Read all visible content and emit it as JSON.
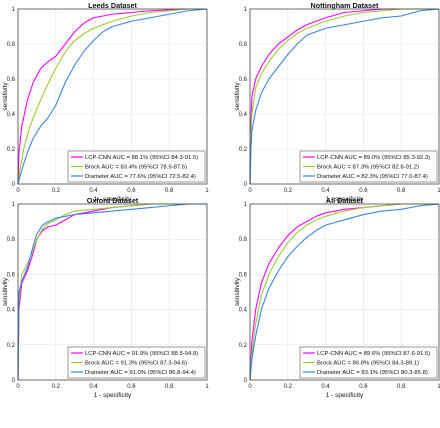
{
  "colors": {
    "lcp_cnn": "#ff00ff",
    "brock": "#9acd32",
    "diameter": "#3a86e0",
    "axes": "#333333",
    "grid": "#e4e4e4"
  },
  "chart_data": [
    {
      "type": "line",
      "title": "Leeds Dataset",
      "xlabel": "1 - specificity",
      "ylabel": "sensitivity",
      "xlim": [
        0,
        1
      ],
      "ylim": [
        0,
        1
      ],
      "xticks": [
        "0",
        "0.2",
        "0.4",
        "0.6",
        "0.8",
        "1"
      ],
      "yticks": [
        "0",
        "0.2",
        "0.4",
        "0.6",
        "0.8",
        "1"
      ],
      "grid": true,
      "legend_position": "bottom-right",
      "series": [
        {
          "name": "LCP-CNN AUC = 88.1% (95%CI 84.3-91.5)",
          "color_key": "lcp_cnn",
          "x": [
            0,
            0.005,
            0.02,
            0.05,
            0.08,
            0.12,
            0.16,
            0.2,
            0.25,
            0.3,
            0.35,
            0.4,
            0.5,
            0.6,
            0.7,
            0.8,
            0.9,
            1.0
          ],
          "y": [
            0,
            0.18,
            0.33,
            0.48,
            0.58,
            0.66,
            0.7,
            0.73,
            0.8,
            0.87,
            0.92,
            0.95,
            0.97,
            0.98,
            0.99,
            0.995,
            1.0,
            1.0
          ]
        },
        {
          "name": "Brock AUC = 83.4% (95%CI 78.9-87.5)",
          "color_key": "brock",
          "x": [
            0,
            0.01,
            0.03,
            0.06,
            0.1,
            0.14,
            0.18,
            0.22,
            0.26,
            0.3,
            0.35,
            0.4,
            0.5,
            0.6,
            0.7,
            0.8,
            0.9,
            1.0
          ],
          "y": [
            0,
            0.08,
            0.2,
            0.32,
            0.43,
            0.53,
            0.62,
            0.7,
            0.77,
            0.82,
            0.86,
            0.89,
            0.93,
            0.96,
            0.98,
            0.99,
            1.0,
            1.0
          ]
        },
        {
          "name": "Diameter AUC = 77.6% (95%CI 72.5-82.4)",
          "color_key": "diameter",
          "x": [
            0,
            0.02,
            0.05,
            0.08,
            0.12,
            0.16,
            0.2,
            0.25,
            0.3,
            0.35,
            0.4,
            0.45,
            0.5,
            0.6,
            0.7,
            0.8,
            0.9,
            1.0
          ],
          "y": [
            0,
            0.08,
            0.18,
            0.26,
            0.33,
            0.38,
            0.45,
            0.58,
            0.68,
            0.76,
            0.82,
            0.87,
            0.9,
            0.93,
            0.95,
            0.97,
            0.99,
            1.0
          ]
        }
      ]
    },
    {
      "type": "line",
      "title": "Nottingham Dataset",
      "xlabel": "1 - specificity",
      "ylabel": "sensitivity",
      "xlim": [
        0,
        1
      ],
      "ylim": [
        0,
        1
      ],
      "xticks": [
        "0",
        "0.2",
        "0.4",
        "0.6",
        "0.8",
        "1"
      ],
      "yticks": [
        "0",
        "0.2",
        "0.4",
        "0.6",
        "0.8",
        "1"
      ],
      "grid": true,
      "legend_position": "bottom-right",
      "series": [
        {
          "name": "LCP-CNN AUC = 89.0% (95%CI 85.3-92.3)",
          "color_key": "lcp_cnn",
          "x": [
            0,
            0.005,
            0.01,
            0.03,
            0.06,
            0.1,
            0.15,
            0.2,
            0.25,
            0.3,
            0.4,
            0.5,
            0.6,
            0.7,
            0.8,
            0.9,
            1.0
          ],
          "y": [
            0,
            0.35,
            0.5,
            0.6,
            0.67,
            0.74,
            0.8,
            0.84,
            0.88,
            0.91,
            0.95,
            0.98,
            0.99,
            1.0,
            1.0,
            1.0,
            1.0
          ]
        },
        {
          "name": "Brock AUC = 87.3% (95%CI 82.8-91.2)",
          "color_key": "brock",
          "x": [
            0,
            0.005,
            0.01,
            0.03,
            0.06,
            0.1,
            0.15,
            0.2,
            0.25,
            0.3,
            0.4,
            0.5,
            0.6,
            0.7,
            0.8,
            0.9,
            1.0
          ],
          "y": [
            0,
            0.25,
            0.4,
            0.55,
            0.63,
            0.7,
            0.77,
            0.82,
            0.86,
            0.89,
            0.93,
            0.96,
            0.98,
            0.99,
            1.0,
            1.0,
            1.0
          ]
        },
        {
          "name": "Diameter AUC = 82.3% (95%CI 77.0-87.4)",
          "color_key": "diameter",
          "x": [
            0,
            0.005,
            0.01,
            0.03,
            0.06,
            0.1,
            0.15,
            0.2,
            0.25,
            0.3,
            0.4,
            0.5,
            0.6,
            0.7,
            0.8,
            0.9,
            1.0
          ],
          "y": [
            0,
            0.2,
            0.3,
            0.42,
            0.52,
            0.6,
            0.67,
            0.74,
            0.8,
            0.85,
            0.89,
            0.91,
            0.93,
            0.95,
            0.96,
            0.99,
            1.0
          ]
        }
      ]
    },
    {
      "type": "line",
      "title": "Oxford Dataset",
      "xlabel": "1 - specificity",
      "ylabel": "sensitivity",
      "xlim": [
        0,
        1
      ],
      "ylim": [
        0,
        1
      ],
      "xticks": [
        "0",
        "0.2",
        "0.4",
        "0.6",
        "0.8",
        "1"
      ],
      "yticks": [
        "0",
        "0.2",
        "0.4",
        "0.6",
        "0.8",
        "1"
      ],
      "grid": true,
      "legend_position": "bottom-right",
      "series": [
        {
          "name": "LCP-CNN AUC = 91.9% (95%CI 88.5-94.9)",
          "color_key": "lcp_cnn",
          "x": [
            0,
            0.005,
            0.02,
            0.05,
            0.08,
            0.1,
            0.13,
            0.16,
            0.2,
            0.25,
            0.3,
            0.4,
            0.5,
            0.6,
            0.7,
            0.8,
            0.9,
            1.0
          ],
          "y": [
            0,
            0.4,
            0.55,
            0.62,
            0.72,
            0.8,
            0.85,
            0.87,
            0.88,
            0.91,
            0.94,
            0.96,
            0.98,
            0.99,
            1.0,
            1.0,
            1.0,
            1.0
          ]
        },
        {
          "name": "Brock AUC = 91.3% (95%CI 87.3-94.6)",
          "color_key": "brock",
          "x": [
            0,
            0.005,
            0.02,
            0.05,
            0.08,
            0.1,
            0.13,
            0.16,
            0.2,
            0.25,
            0.3,
            0.4,
            0.5,
            0.6,
            0.7,
            0.8,
            0.9,
            1.0
          ],
          "y": [
            0,
            0.45,
            0.6,
            0.66,
            0.74,
            0.8,
            0.86,
            0.89,
            0.91,
            0.94,
            0.96,
            0.97,
            0.98,
            0.99,
            1.0,
            1.0,
            1.0,
            1.0
          ]
        },
        {
          "name": "Diameter AUC = 91.0% (95%CI 86.8-94.4)",
          "color_key": "diameter",
          "x": [
            0,
            0.005,
            0.02,
            0.05,
            0.08,
            0.1,
            0.13,
            0.16,
            0.2,
            0.25,
            0.3,
            0.4,
            0.5,
            0.6,
            0.7,
            0.8,
            0.9,
            1.0
          ],
          "y": [
            0,
            0.5,
            0.56,
            0.64,
            0.76,
            0.83,
            0.88,
            0.9,
            0.92,
            0.93,
            0.94,
            0.95,
            0.96,
            0.97,
            0.98,
            0.99,
            1.0,
            1.0
          ]
        }
      ]
    },
    {
      "type": "line",
      "title": "All Dataset",
      "xlabel": "1 - specificity",
      "ylabel": "sensitivity",
      "xlim": [
        0,
        1
      ],
      "ylim": [
        0,
        1
      ],
      "xticks": [
        "0",
        "0.2",
        "0.4",
        "0.6",
        "0.8",
        "1"
      ],
      "yticks": [
        "0",
        "0.2",
        "0.4",
        "0.6",
        "0.8",
        "1"
      ],
      "grid": true,
      "legend_position": "bottom-right",
      "series": [
        {
          "name": "LCP-CNN AUC = 89.6% (95%CI 87.6-91.5)",
          "color_key": "lcp_cnn",
          "x": [
            0,
            0.01,
            0.03,
            0.06,
            0.1,
            0.15,
            0.2,
            0.25,
            0.3,
            0.35,
            0.4,
            0.5,
            0.6,
            0.7,
            0.8,
            0.9,
            1.0
          ],
          "y": [
            0,
            0.22,
            0.4,
            0.55,
            0.66,
            0.75,
            0.82,
            0.87,
            0.9,
            0.93,
            0.95,
            0.97,
            0.98,
            0.99,
            1.0,
            1.0,
            1.0
          ]
        },
        {
          "name": "Brock AUC = 86.8% (95%CI 84.3-89.1)",
          "color_key": "brock",
          "x": [
            0,
            0.01,
            0.03,
            0.06,
            0.1,
            0.15,
            0.2,
            0.25,
            0.3,
            0.35,
            0.4,
            0.5,
            0.6,
            0.7,
            0.8,
            0.9,
            1.0
          ],
          "y": [
            0,
            0.15,
            0.32,
            0.48,
            0.6,
            0.7,
            0.78,
            0.84,
            0.88,
            0.91,
            0.93,
            0.96,
            0.98,
            0.99,
            1.0,
            1.0,
            1.0
          ]
        },
        {
          "name": "Diameter AUC = 83.1% (95%CI 80.3-85.8)",
          "color_key": "diameter",
          "x": [
            0,
            0.01,
            0.03,
            0.06,
            0.1,
            0.15,
            0.2,
            0.25,
            0.3,
            0.35,
            0.4,
            0.5,
            0.6,
            0.7,
            0.8,
            0.9,
            1.0
          ],
          "y": [
            0,
            0.12,
            0.25,
            0.4,
            0.52,
            0.62,
            0.7,
            0.76,
            0.81,
            0.85,
            0.88,
            0.91,
            0.94,
            0.96,
            0.97,
            0.99,
            1.0
          ]
        }
      ]
    }
  ]
}
